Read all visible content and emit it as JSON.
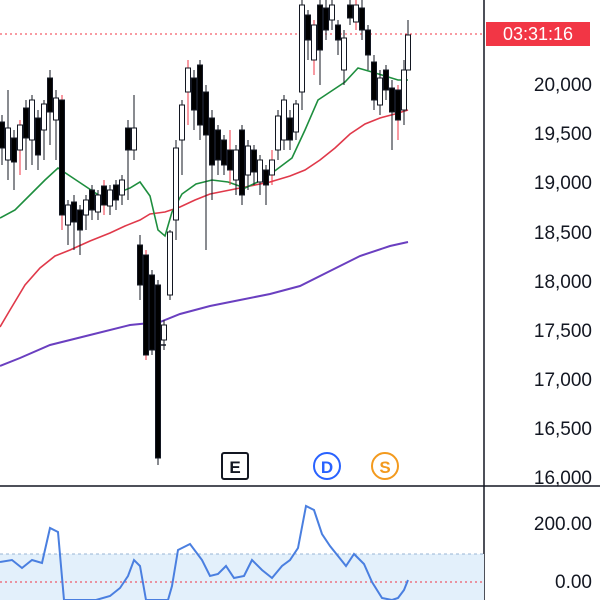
{
  "price_pane": {
    "axis_labels": [
      "20,000",
      "19,500",
      "19,000",
      "18,500",
      "18,000",
      "17,500",
      "17,000",
      "16,500",
      "16,000"
    ],
    "axis_values": [
      20000,
      19500,
      19000,
      18500,
      18000,
      17500,
      17000,
      16500,
      16000
    ],
    "countdown": "03:31:16",
    "countdown_color": "#f23645"
  },
  "oscillator_pane": {
    "axis_labels": [
      "200.00",
      "0.00"
    ],
    "line_color": "#4a7fe0",
    "band_color": "#e3f0fb"
  },
  "events": [
    {
      "letter": "E",
      "kind": "earnings",
      "color": "#131722"
    },
    {
      "letter": "D",
      "kind": "dividend",
      "color": "#2962ff"
    },
    {
      "letter": "S",
      "kind": "split",
      "color": "#f39a1e"
    }
  ],
  "moving_averages": [
    {
      "color": "#1e8e3e",
      "icon": "ma-short"
    },
    {
      "color": "#e0394a",
      "icon": "ma-medium"
    },
    {
      "color": "#6a3fc0",
      "icon": "ma-long"
    }
  ],
  "candle_colors": {
    "up": "#ffffff",
    "down": "#000000",
    "wick": "#f23645"
  }
}
